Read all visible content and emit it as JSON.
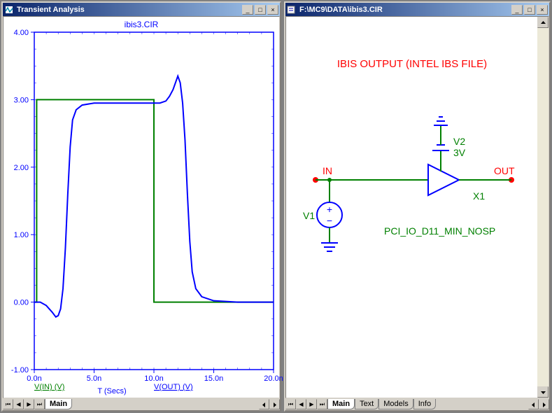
{
  "window1": {
    "title": "Transient Analysis",
    "chart_title": "ibis3.CIR",
    "chart": {
      "type": "line",
      "title_color": "#0000ff",
      "background_color": "#ffffff",
      "xlabel": "T (Secs)",
      "xlabel_color": "#0000ff",
      "xlim": [
        0,
        2e-08
      ],
      "xticks": [
        "0.0n",
        "5.0n",
        "10.0n",
        "15.0n",
        "20.0n"
      ],
      "ylim": [
        -1.0,
        4.0
      ],
      "yticks": [
        "-1.00",
        "0.00",
        "1.00",
        "2.00",
        "3.00",
        "4.00"
      ],
      "axis_color": "#0000ff",
      "grid_color": "#808080",
      "tick_fontsize": 11,
      "label_fontsize": 11,
      "series": [
        {
          "name": "V(IN) (V)",
          "color": "#008000",
          "width": 2,
          "points": [
            [
              0,
              0
            ],
            [
              0.2,
              0
            ],
            [
              0.2,
              3.0
            ],
            [
              10.0,
              3.0
            ],
            [
              10.0,
              0
            ],
            [
              20.0,
              0
            ]
          ]
        },
        {
          "name": "V(OUT) (V)",
          "color": "#0000ff",
          "width": 2,
          "points": [
            [
              0,
              0
            ],
            [
              0.5,
              0
            ],
            [
              1.0,
              -0.05
            ],
            [
              1.5,
              -0.15
            ],
            [
              1.8,
              -0.22
            ],
            [
              2.0,
              -0.2
            ],
            [
              2.2,
              -0.1
            ],
            [
              2.4,
              0.2
            ],
            [
              2.6,
              0.8
            ],
            [
              2.8,
              1.6
            ],
            [
              3.0,
              2.3
            ],
            [
              3.2,
              2.7
            ],
            [
              3.5,
              2.85
            ],
            [
              4.0,
              2.92
            ],
            [
              5.0,
              2.95
            ],
            [
              7.0,
              2.95
            ],
            [
              10.0,
              2.95
            ],
            [
              10.5,
              2.95
            ],
            [
              11.0,
              2.98
            ],
            [
              11.3,
              3.05
            ],
            [
              11.6,
              3.15
            ],
            [
              11.9,
              3.3
            ],
            [
              12.0,
              3.35
            ],
            [
              12.2,
              3.25
            ],
            [
              12.4,
              2.95
            ],
            [
              12.6,
              2.4
            ],
            [
              12.8,
              1.6
            ],
            [
              13.0,
              0.9
            ],
            [
              13.2,
              0.45
            ],
            [
              13.5,
              0.2
            ],
            [
              14.0,
              0.08
            ],
            [
              15.0,
              0.02
            ],
            [
              17.0,
              0.0
            ],
            [
              20.0,
              0.0
            ]
          ]
        }
      ],
      "legend_items": [
        {
          "label": "V(IN) (V)",
          "color": "#008000"
        },
        {
          "label": "V(OUT) (V)",
          "color": "#0000ff"
        }
      ]
    },
    "status_tabs": [
      "Main"
    ]
  },
  "window2": {
    "title": "F:\\MC9\\DATA\\ibis3.CIR",
    "schematic": {
      "title": "IBIS OUTPUT (INTEL IBS FILE)",
      "title_color": "#ff0000",
      "wire_color": "#008000",
      "labels": {
        "IN": {
          "text": "IN",
          "color": "#ff0000"
        },
        "OUT": {
          "text": "OUT",
          "color": "#ff0000"
        },
        "V1": {
          "text": "V1",
          "color": "#008000"
        },
        "V2": {
          "text": "V2",
          "color": "#008000"
        },
        "V2_val": {
          "text": "3V",
          "color": "#008000"
        },
        "X1": {
          "text": "X1",
          "color": "#008000"
        },
        "model": {
          "text": "PCI_IO_D11_MIN_NOSP",
          "color": "#008000"
        }
      }
    },
    "status_tabs": [
      "Main",
      "Text",
      "Models",
      "Info"
    ]
  }
}
